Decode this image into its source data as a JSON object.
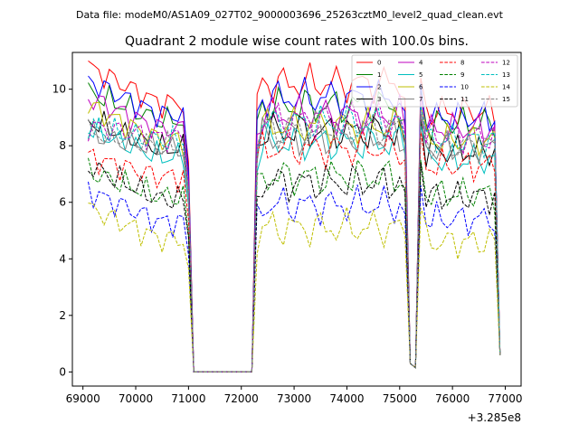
{
  "suptitle": "Data file: modeM0/AS1A09_027T02_9000003696_25263cztM0_level2_quad_clean.evt",
  "chart_data": {
    "type": "line",
    "title": "Quadrant 2 module wise count rates with 100.0s bins.",
    "xlabel": "",
    "ylabel": "",
    "x_offset_text": "+3.285e8",
    "xlim": [
      68800,
      77300
    ],
    "ylim": [
      -0.5,
      11.3
    ],
    "xticks": [
      69000,
      70000,
      71000,
      72000,
      73000,
      74000,
      75000,
      76000,
      77000
    ],
    "yticks": [
      0,
      2,
      4,
      6,
      8,
      10
    ],
    "grid": false,
    "legend": {
      "placement": "top-right",
      "ncol": 4
    },
    "segment_x": [
      [
        69100,
        69200,
        69300,
        69400,
        69500,
        69600,
        69700,
        69800,
        69900,
        70000,
        70100,
        70200,
        70300,
        70400,
        70500,
        70600,
        70700,
        70800,
        70900,
        71000,
        71100
      ],
      [
        71100,
        72200
      ],
      [
        72200,
        72300,
        72400,
        72500,
        72600,
        72700,
        72800,
        72900,
        73000,
        73100,
        73200,
        73300,
        73400,
        73500,
        73600,
        73700,
        73800,
        73900,
        74000,
        74100,
        74200,
        74300,
        74400,
        74500,
        74600,
        74700,
        74800,
        74900,
        75000,
        75100,
        75200,
        75300
      ],
      [
        75300,
        75400,
        75500,
        75600,
        75700,
        75800,
        75900,
        76000,
        76100,
        76200,
        76300,
        76400,
        76500,
        76600,
        76700,
        76800,
        76900
      ]
    ],
    "series": [
      {
        "name": "0",
        "color": "#ff0000",
        "dash": "solid",
        "levels": [
          10.8,
          9.5,
          10.2,
          9.2
        ]
      },
      {
        "name": "1",
        "color": "#008000",
        "dash": "solid",
        "levels": [
          9.9,
          8.9,
          9.4,
          8.8
        ]
      },
      {
        "name": "2",
        "color": "#0000ff",
        "dash": "solid",
        "levels": [
          10.3,
          9.1,
          9.7,
          9.0
        ]
      },
      {
        "name": "3",
        "color": "#000000",
        "dash": "solid",
        "levels": [
          8.9,
          7.9,
          8.5,
          7.8
        ]
      },
      {
        "name": "4",
        "color": "#bf00bf",
        "dash": "solid",
        "levels": [
          9.7,
          8.6,
          9.1,
          8.6
        ]
      },
      {
        "name": "5",
        "color": "#00bfbf",
        "dash": "solid",
        "levels": [
          8.6,
          7.6,
          8.1,
          7.5
        ]
      },
      {
        "name": "6",
        "color": "#bfbf00",
        "dash": "solid",
        "levels": [
          9.4,
          8.2,
          8.7,
          8.2
        ]
      },
      {
        "name": "7",
        "color": "#808080",
        "dash": "solid",
        "levels": [
          8.4,
          7.9,
          8.3,
          7.9
        ]
      },
      {
        "name": "8",
        "color": "#ff0000",
        "dash": "dashed",
        "levels": [
          7.6,
          6.9,
          7.9,
          7.3
        ]
      },
      {
        "name": "9",
        "color": "#008000",
        "dash": "dashed",
        "levels": [
          7.1,
          6.2,
          6.9,
          6.3
        ]
      },
      {
        "name": "10",
        "color": "#0000ff",
        "dash": "dashed",
        "levels": [
          6.4,
          5.3,
          5.9,
          5.4
        ]
      },
      {
        "name": "11",
        "color": "#000000",
        "dash": "dashed",
        "levels": [
          7.3,
          6.1,
          6.7,
          6.2
        ]
      },
      {
        "name": "12",
        "color": "#bf00bf",
        "dash": "dashed",
        "levels": [
          8.7,
          8.3,
          8.9,
          8.3
        ]
      },
      {
        "name": "13",
        "color": "#00bfbf",
        "dash": "dashed",
        "levels": [
          8.6,
          8.2,
          8.8,
          8.2
        ]
      },
      {
        "name": "14",
        "color": "#bfbf00",
        "dash": "dashed",
        "levels": [
          5.8,
          4.7,
          5.1,
          4.6
        ]
      },
      {
        "name": "15",
        "color": "#808080",
        "dash": "dashed",
        "levels": [
          8.5,
          8.0,
          8.6,
          8.0
        ]
      }
    ]
  }
}
